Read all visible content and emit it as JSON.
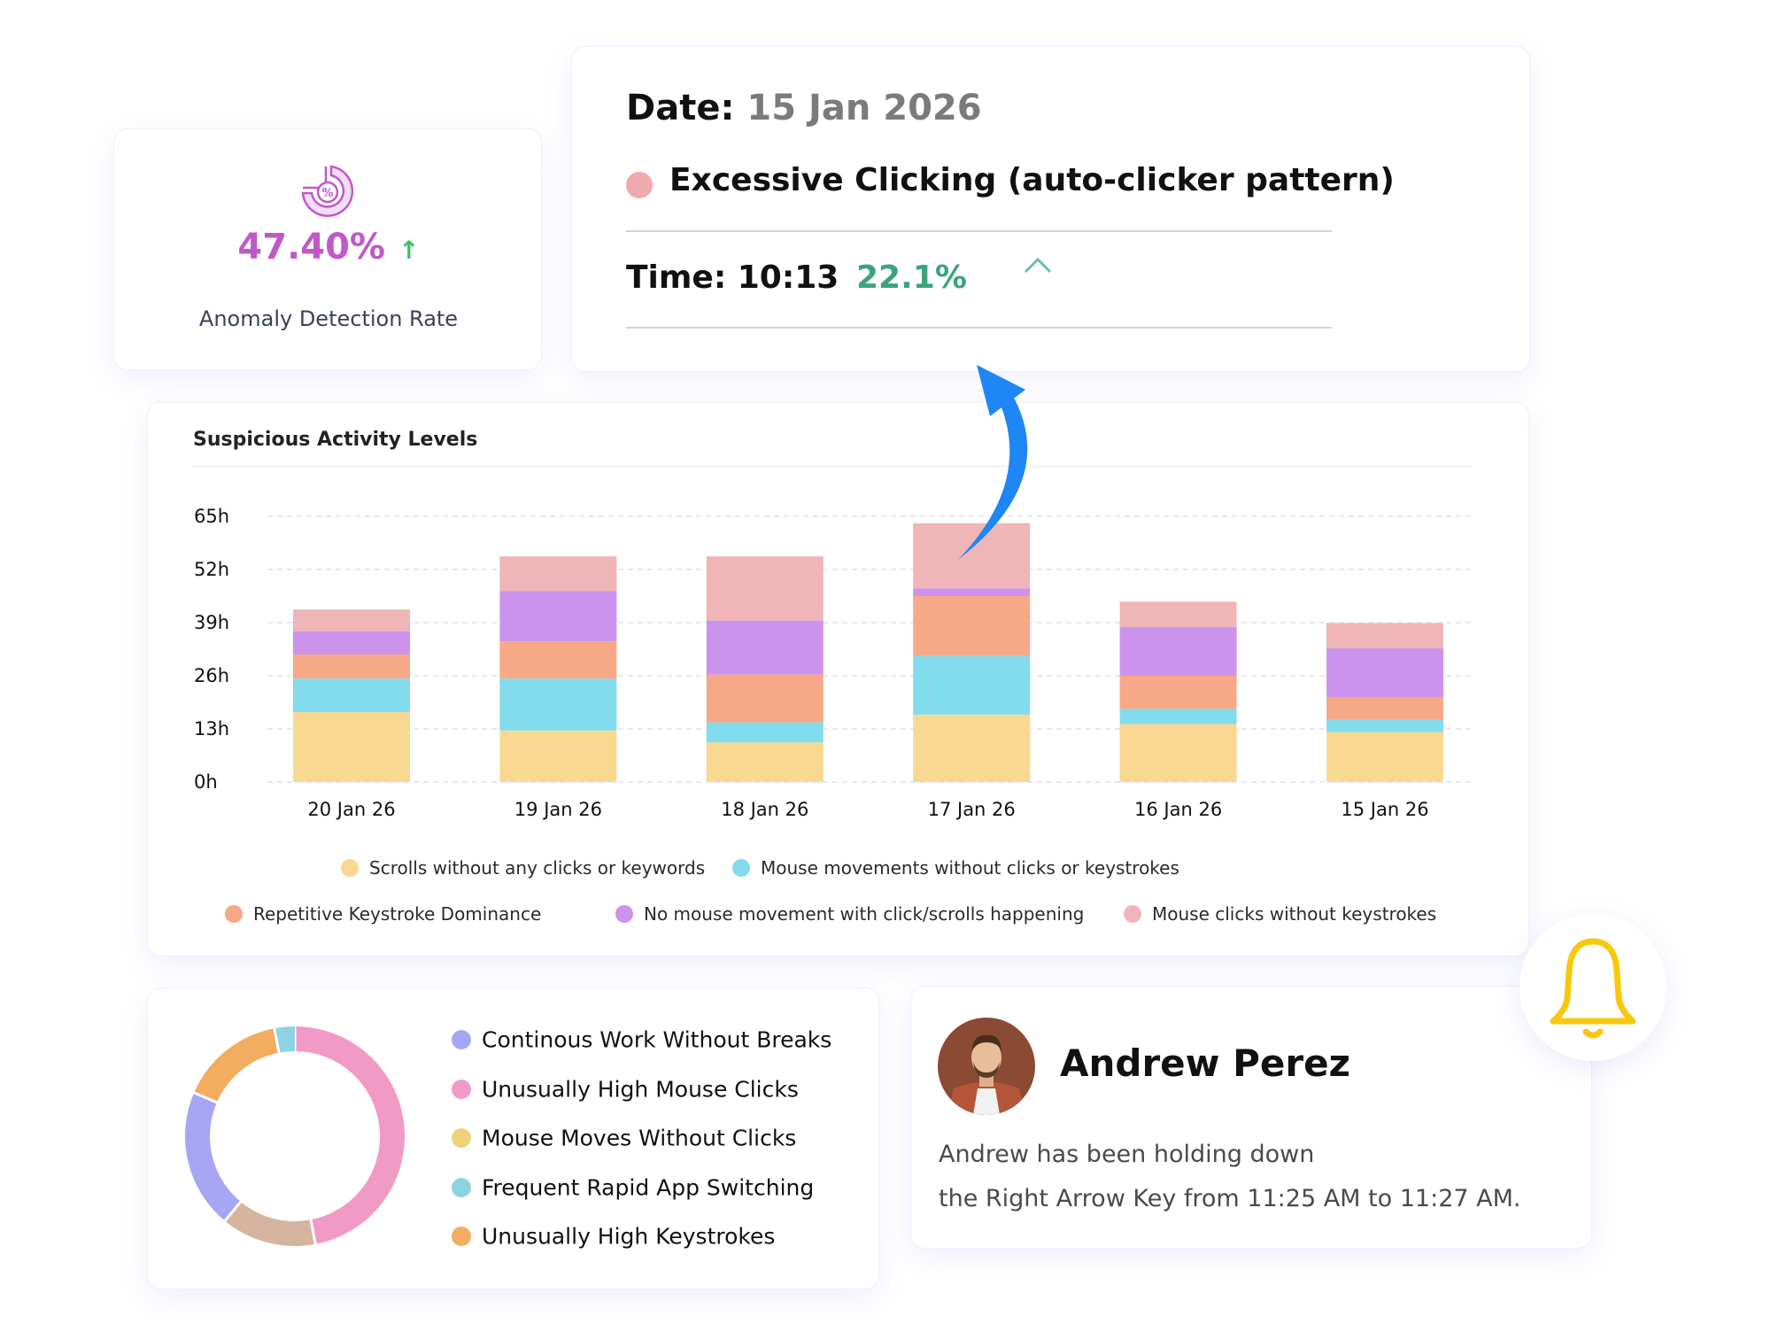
{
  "stat": {
    "icon": "percent-donut-icon",
    "value": "47.40%",
    "trend_icon": "arrow-up-icon",
    "label": "Anomaly Detection Rate",
    "value_color": "#c158c9",
    "trend_color": "#3fbf6a"
  },
  "detail": {
    "date_label": "Date:",
    "date_value": "15 Jan 2026",
    "event_label": "Excessive Clicking (auto-clicker pattern)",
    "event_color": "#efaaae",
    "time_label": "Time: 10:13",
    "percent": "22.1%",
    "percent_color": "#3aa57a",
    "caret_icon": "chevron-up-icon"
  },
  "chart_data": {
    "type": "bar",
    "stacked": true,
    "title": "Suspicious Activity Levels",
    "categories": [
      "20 Jan 26",
      "19 Jan 26",
      "18 Jan 26",
      "17 Jan 26",
      "16 Jan 26",
      "15 Jan 26"
    ],
    "y_ticks": [
      "0h",
      "13h",
      "26h",
      "39h",
      "52h",
      "65h"
    ],
    "ylim": [
      0,
      65
    ],
    "grid": true,
    "legend_position": "bottom",
    "series": [
      {
        "name": "Scrolls without any clicks or keywords",
        "color": "#f9d891",
        "values": [
          17.1,
          12.6,
          9.7,
          16.5,
          14.2,
          12.2
        ]
      },
      {
        "name": "Mouse movements without clicks or keystrokes",
        "color": "#82dced",
        "values": [
          8.2,
          12.7,
          4.9,
          14.3,
          3.7,
          3.0
        ]
      },
      {
        "name": "Repetitive Keystroke Dominance",
        "color": "#f7a886",
        "values": [
          5.9,
          9.1,
          11.7,
          14.7,
          8.1,
          5.6
        ]
      },
      {
        "name": "No mouse movement with click/scrolls happening",
        "color": "#cc93ec",
        "values": [
          5.7,
          12.3,
          13.2,
          1.9,
          11.9,
          11.9
        ]
      },
      {
        "name": "Mouse clicks without keystrokes",
        "color": "#efb5b7",
        "values": [
          5.3,
          8.5,
          15.7,
          15.9,
          6.2,
          6.2
        ]
      }
    ]
  },
  "donut": {
    "items": [
      {
        "label": "Continous Work Without Breaks",
        "color": "#a6a6f5",
        "segment_color": "#a6a6f5",
        "value": 20.5
      },
      {
        "label": "Unusually High Mouse Clicks",
        "color": "#f29ac6",
        "segment_color": "#f29ac6",
        "value": 47
      },
      {
        "label": "Mouse Moves Without Clicks",
        "color": "#ecd27a",
        "segment_color": "#d6b5a0",
        "value": 14
      },
      {
        "label": "Frequent Rapid App Switching",
        "color": "#8fd3e3",
        "segment_color": "#8fd3e3",
        "value": 3
      },
      {
        "label": "Unusually High Keystrokes",
        "color": "#f2ad60",
        "segment_color": "#f2ad60",
        "value": 15.5
      }
    ],
    "order_clockwise_from_top": [
      1,
      2,
      0,
      4,
      3
    ]
  },
  "alert": {
    "avatar": "user-avatar-photo",
    "name": "Andrew Perez",
    "line1": "Andrew has been holding down",
    "line2": "the Right Arrow Key from 11:25 AM to 11:27 AM.",
    "bell_icon": "bell-icon",
    "bell_color": "#f9c80e"
  },
  "arrow_color": "#1f86f5"
}
